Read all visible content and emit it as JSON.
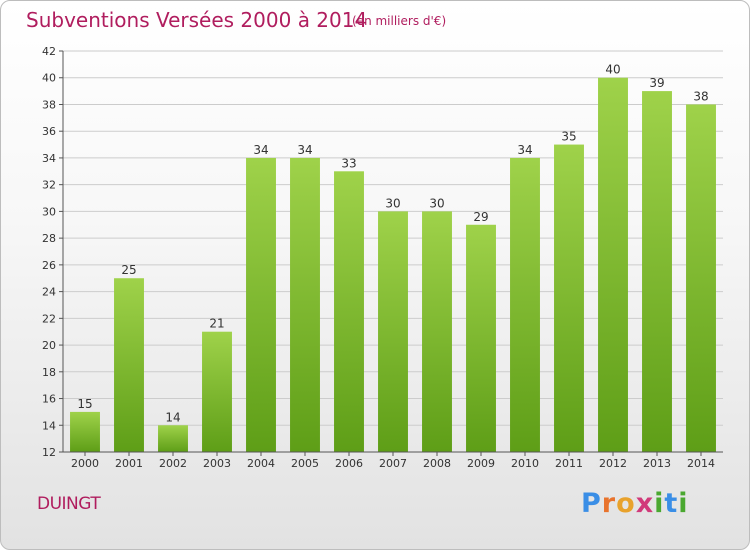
{
  "header": {
    "title": "Subventions Versées 2000 à 2014",
    "subtitle": "(en milliers d'€)"
  },
  "place_name": "DUINGT",
  "brand": {
    "letters": [
      "P",
      "r",
      "o",
      "x",
      "i",
      "t",
      "i"
    ],
    "colors": [
      "#3a8ee6",
      "#e8732c",
      "#e8a22c",
      "#d13a7a",
      "#4aa830",
      "#3a8ee6",
      "#4aa830"
    ]
  },
  "colors": {
    "title": "#b01d5e",
    "bar_light": "#9fd24a",
    "bar_dark": "#5e9e17",
    "grid": "#cccccc"
  },
  "chart_data": {
    "type": "bar",
    "title": "Subventions Versées 2000 à 2014",
    "categories": [
      "2000",
      "2001",
      "2002",
      "2003",
      "2004",
      "2005",
      "2006",
      "2007",
      "2008",
      "2009",
      "2010",
      "2011",
      "2012",
      "2013",
      "2014"
    ],
    "values": [
      15,
      25,
      14,
      21,
      34,
      34,
      33,
      30,
      30,
      29,
      34,
      35,
      40,
      39,
      38
    ],
    "ylim": [
      12,
      42
    ],
    "yticks": [
      12,
      14,
      16,
      18,
      20,
      22,
      24,
      26,
      28,
      30,
      32,
      34,
      36,
      38,
      40,
      42
    ],
    "grid": true,
    "xlabel": "",
    "ylabel": ""
  }
}
